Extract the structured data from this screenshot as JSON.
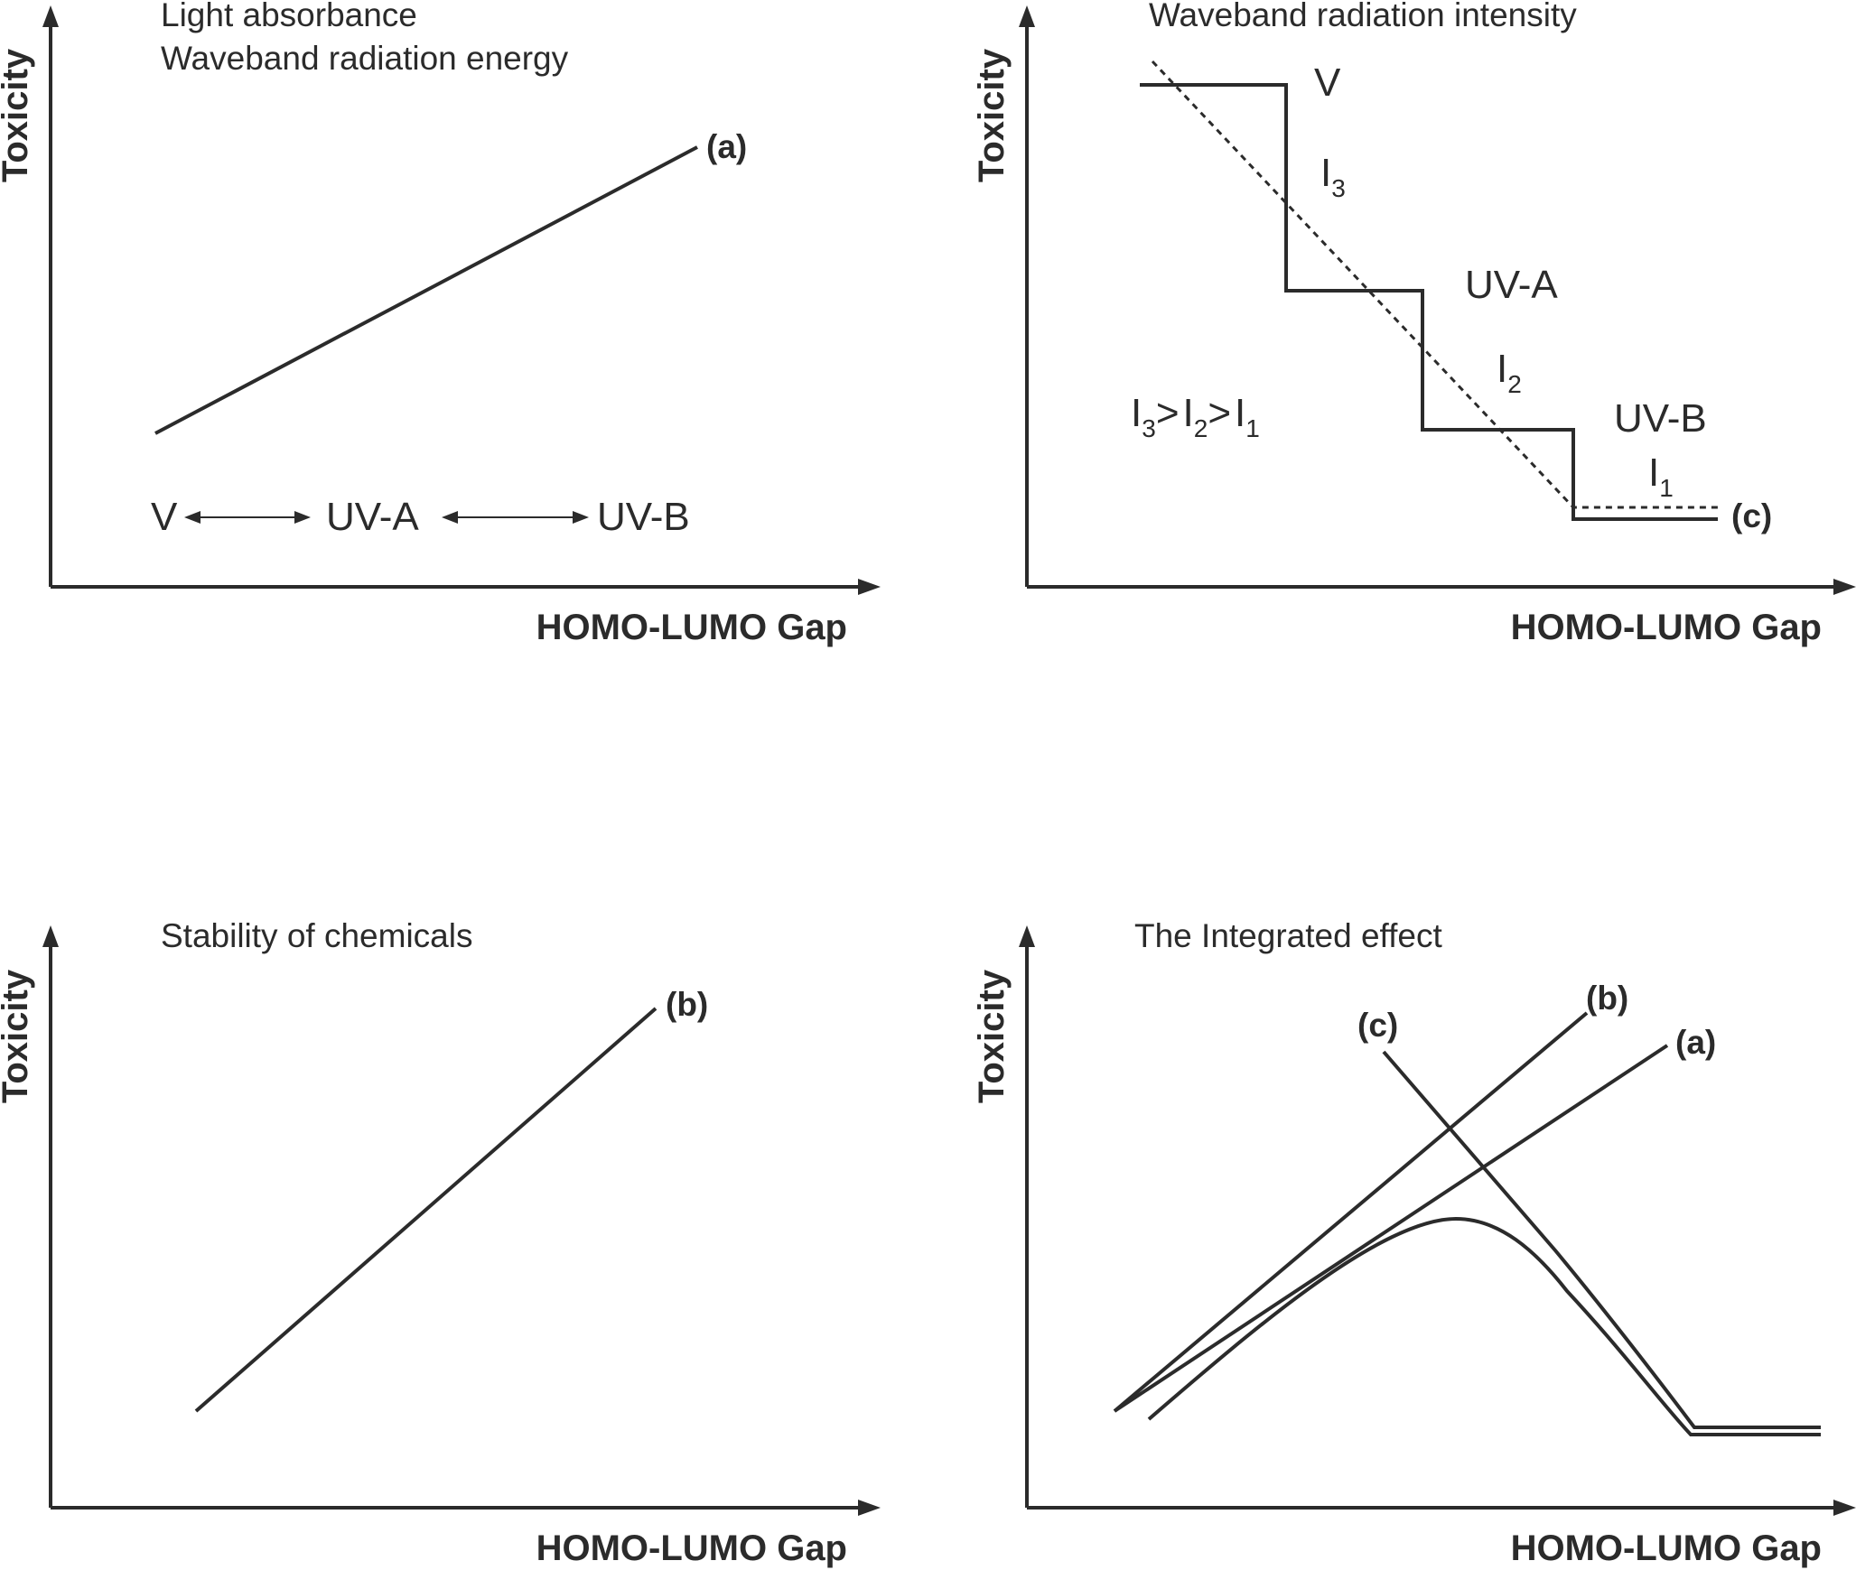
{
  "panel_a": {
    "title_line1": "Light absorbance",
    "title_line2": "Waveband radiation energy",
    "curve_label": "(a)",
    "band_v": "V",
    "band_uva": "UV-A",
    "band_uvb": "UV-B",
    "x_axis_label": "HOMO-LUMO Gap",
    "y_axis_label": "Toxicity"
  },
  "panel_c": {
    "title": "Waveband radiation intensity",
    "band_v": "V",
    "band_uva": "UV-A",
    "band_uvb": "UV-B",
    "i_letter": "I",
    "i3_sub": "3",
    "i2_sub": "2",
    "i1_sub": "1",
    "gt": ">",
    "curve_label": "(c)",
    "x_axis_label": "HOMO-LUMO Gap",
    "y_axis_label": "Toxicity"
  },
  "panel_b": {
    "title": "Stability of chemicals",
    "curve_label": "(b)",
    "x_axis_label": "HOMO-LUMO Gap",
    "y_axis_label": "Toxicity"
  },
  "panel_integrated": {
    "title": "The Integrated effect",
    "label_c": "(c)",
    "label_b": "(b)",
    "label_a": "(a)",
    "x_axis_label": "HOMO-LUMO Gap",
    "y_axis_label": "Toxicity"
  }
}
